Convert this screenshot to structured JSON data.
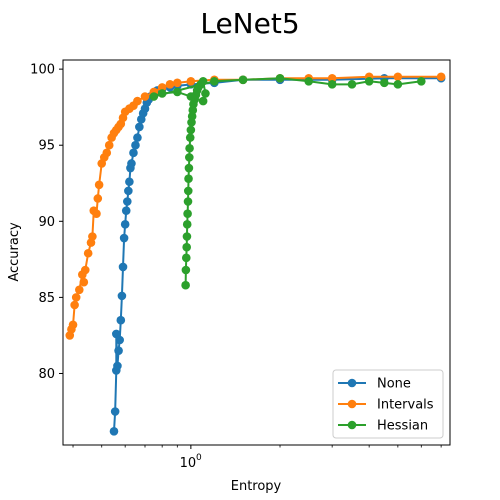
{
  "chart_data": {
    "type": "line",
    "title": "LeNet5",
    "xlabel": "Entropy",
    "ylabel": "Accuracy",
    "xscale": "log",
    "xlim": [
      0.37,
      7.5
    ],
    "ylim": [
      75.3,
      100.6
    ],
    "xticks": [
      {
        "value": 1,
        "label": "10",
        "exp": "0"
      }
    ],
    "yticks": [
      80,
      85,
      90,
      95,
      100
    ],
    "grid": false,
    "legend_position": "bottom-right",
    "series": [
      {
        "name": "None",
        "color": "#1f77b4",
        "x": [
          0.55,
          0.555,
          0.56,
          0.56,
          0.565,
          0.57,
          0.575,
          0.58,
          0.585,
          0.59,
          0.595,
          0.6,
          0.605,
          0.61,
          0.615,
          0.62,
          0.625,
          0.63,
          0.64,
          0.65,
          0.66,
          0.67,
          0.68,
          0.69,
          0.7,
          0.71,
          0.72,
          0.73,
          0.75,
          0.77,
          0.8,
          0.85,
          0.9,
          1.0,
          1.2,
          1.5,
          2.0,
          3.0,
          4.5,
          7.0
        ],
        "y": [
          76.2,
          77.5,
          80.2,
          82.6,
          80.5,
          81.5,
          82.2,
          83.5,
          85.1,
          87.0,
          88.9,
          89.8,
          90.7,
          91.3,
          92.0,
          92.6,
          93.5,
          93.8,
          94.5,
          95.0,
          95.5,
          96.2,
          96.7,
          97.1,
          97.4,
          97.8,
          98.0,
          98.2,
          98.4,
          98.6,
          98.7,
          98.8,
          98.9,
          99.0,
          99.1,
          99.3,
          99.3,
          99.3,
          99.4,
          99.4
        ]
      },
      {
        "name": "Intervals",
        "color": "#ff7f0e",
        "x": [
          0.39,
          0.395,
          0.4,
          0.405,
          0.41,
          0.42,
          0.43,
          0.435,
          0.44,
          0.45,
          0.46,
          0.465,
          0.47,
          0.48,
          0.485,
          0.49,
          0.5,
          0.51,
          0.52,
          0.53,
          0.54,
          0.55,
          0.56,
          0.57,
          0.58,
          0.59,
          0.6,
          0.62,
          0.64,
          0.66,
          0.7,
          0.75,
          0.8,
          0.85,
          0.9,
          1.0,
          1.2,
          1.5,
          2.0,
          2.5,
          3.0,
          4.0,
          5.0,
          7.0
        ],
        "y": [
          82.5,
          82.9,
          83.2,
          84.5,
          85.0,
          85.5,
          86.5,
          86.0,
          86.8,
          87.9,
          88.6,
          89.0,
          90.7,
          90.5,
          91.5,
          92.4,
          93.8,
          94.2,
          94.5,
          95.0,
          95.5,
          95.8,
          96.0,
          96.2,
          96.4,
          96.8,
          97.2,
          97.4,
          97.6,
          97.9,
          98.2,
          98.5,
          98.8,
          99.0,
          99.1,
          99.2,
          99.3,
          99.3,
          99.4,
          99.4,
          99.4,
          99.5,
          99.5,
          99.5
        ]
      },
      {
        "name": "Hessian",
        "color": "#2ca02c",
        "x": [
          0.96,
          0.962,
          0.965,
          0.968,
          0.97,
          0.972,
          0.975,
          0.978,
          0.98,
          0.982,
          0.985,
          0.988,
          0.99,
          0.995,
          1.0,
          1.005,
          1.01,
          1.015,
          1.02,
          1.03,
          1.04,
          1.05,
          1.06,
          1.08,
          1.1,
          1.12,
          1.1,
          1.0,
          0.9,
          0.8,
          0.75,
          1.2,
          1.5,
          2.0,
          2.5,
          3.0,
          3.5,
          4.0,
          4.5,
          5.0,
          6.0
        ],
        "y": [
          85.8,
          86.8,
          87.6,
          88.3,
          89.0,
          89.8,
          90.5,
          91.3,
          92.0,
          92.8,
          93.5,
          94.2,
          94.8,
          95.5,
          96.0,
          96.5,
          96.9,
          97.3,
          97.7,
          98.0,
          98.3,
          98.6,
          98.8,
          99.0,
          99.2,
          98.4,
          97.9,
          98.2,
          98.5,
          98.4,
          98.2,
          99.2,
          99.3,
          99.4,
          99.2,
          99.0,
          99.0,
          99.2,
          99.1,
          99.0,
          99.2
        ]
      }
    ]
  }
}
